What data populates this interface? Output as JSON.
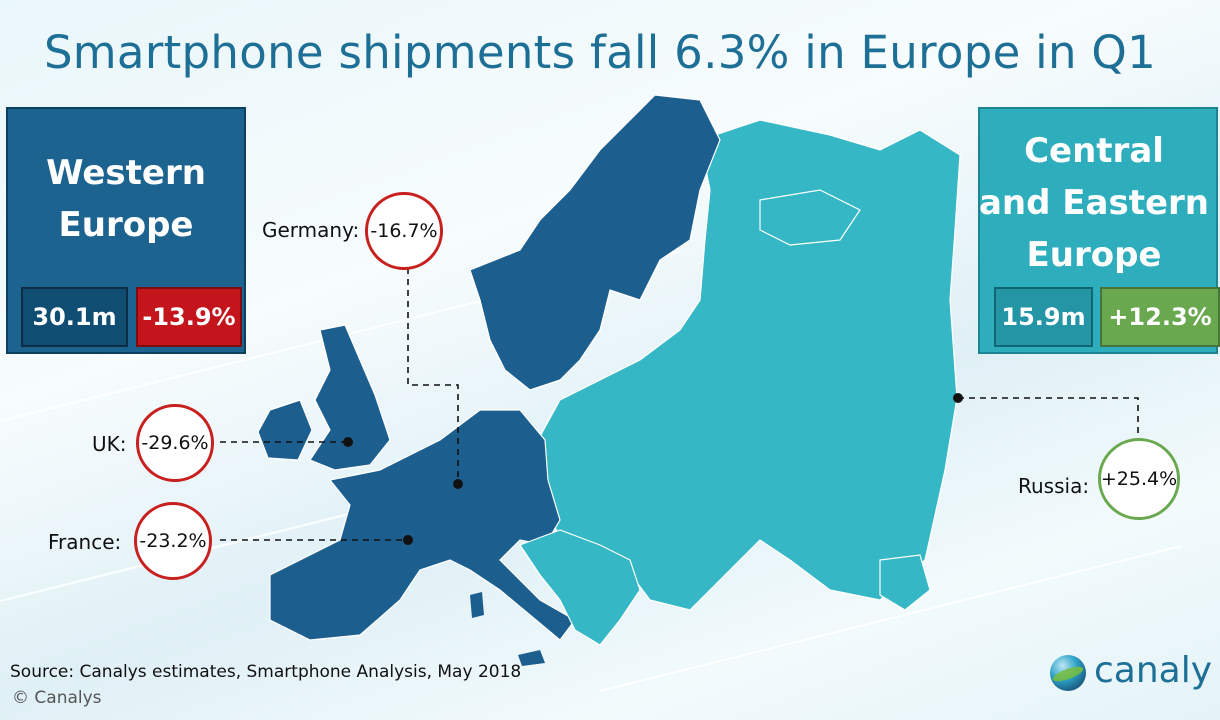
{
  "title": "Smartphone shipments fall 6.3% in Europe in Q1",
  "western": {
    "title_line1": "Western",
    "title_line2": "Europe",
    "units": "30.1m",
    "change": "-13.9%"
  },
  "eastern": {
    "title_line1": "Central",
    "title_line2": "and Eastern",
    "title_line3": "Europe",
    "units": "15.9m",
    "change": "+12.3%"
  },
  "callouts": {
    "germany": {
      "label": "Germany:",
      "value": "-16.7%"
    },
    "uk": {
      "label": "UK:",
      "value": "-29.6%"
    },
    "france": {
      "label": "France:",
      "value": "-23.2%"
    },
    "russia": {
      "label": "Russia:",
      "value": "+25.4%"
    }
  },
  "source": "Source: Canalys estimates, Smartphone Analysis, May 2018",
  "copyright": "© Canalys",
  "logo": "canaly",
  "colors": {
    "western": "#1c638f",
    "eastern": "#2eaebd",
    "decline": "#c5151c",
    "growth": "#6aa84f",
    "title": "#1d6f96"
  }
}
